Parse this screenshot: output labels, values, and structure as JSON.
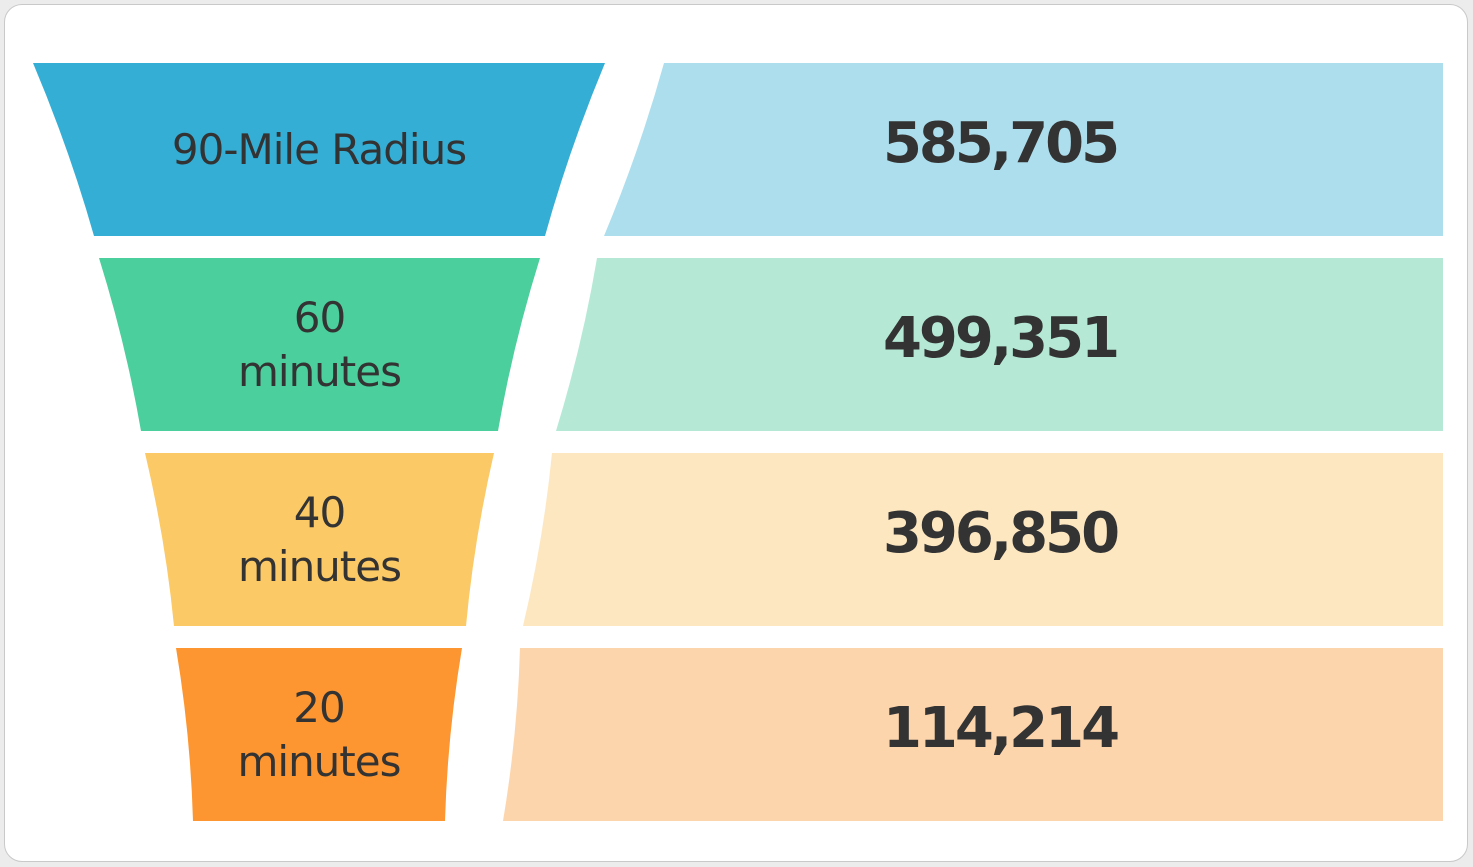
{
  "chart_data": {
    "type": "funnel",
    "categories": [
      "90-Mile Radius",
      "60 minutes",
      "40 minutes",
      "20 minutes"
    ],
    "values": [
      585705,
      499351,
      396850,
      114214
    ],
    "value_labels": [
      "585,705",
      "499,351",
      "396,850",
      "114,214"
    ],
    "colors": [
      "#35aed6",
      "#4bcf9c",
      "#fbc965",
      "#fd9630"
    ],
    "panel_colors": [
      "#addeed",
      "#b5e9d6",
      "#fde7c0",
      "#fdd5ad"
    ]
  }
}
